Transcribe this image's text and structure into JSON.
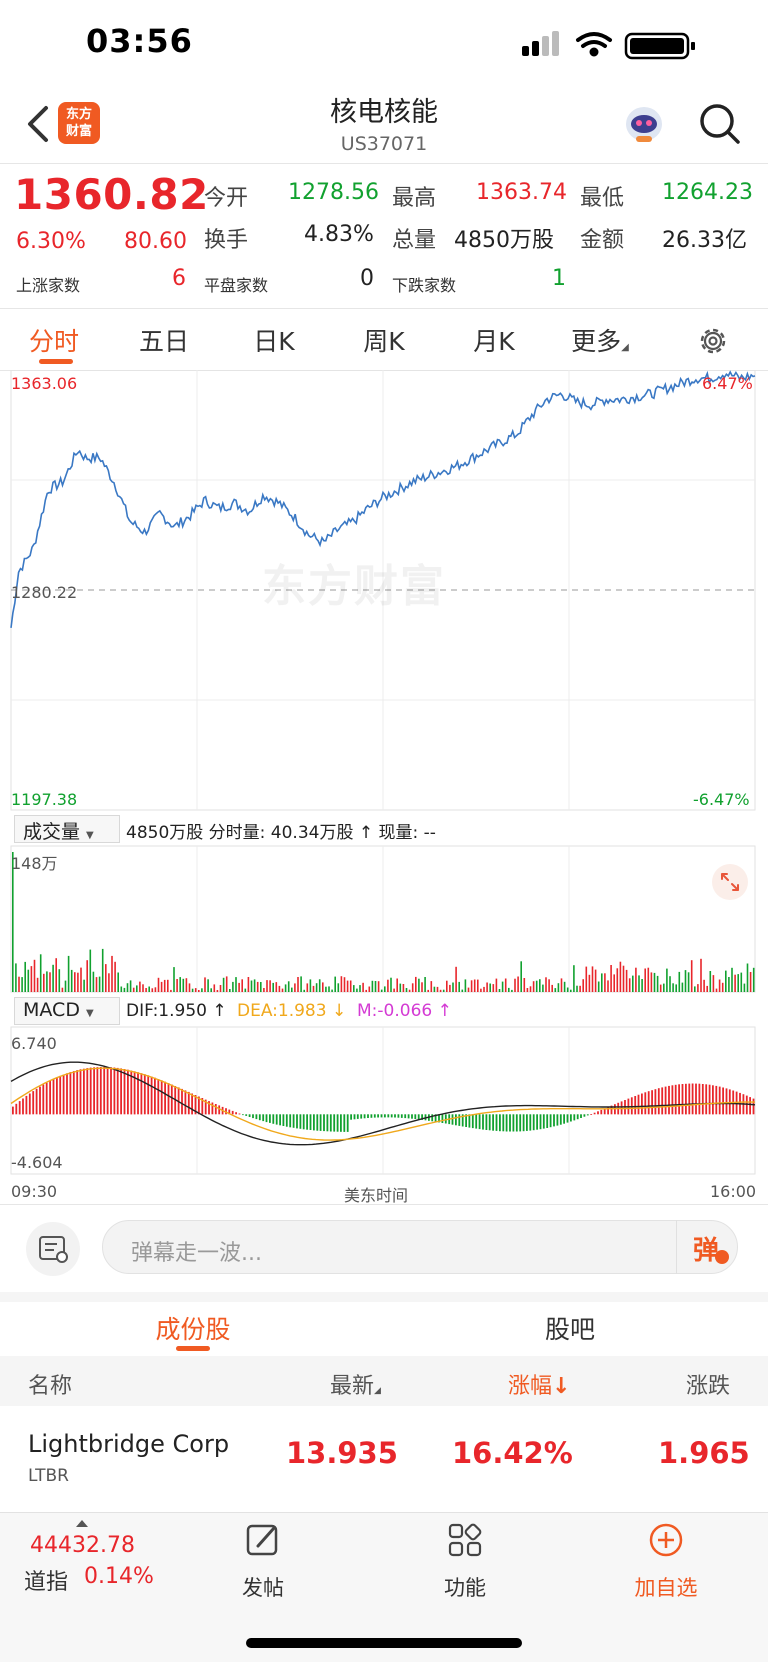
{
  "status_bar": {
    "time": "03:56"
  },
  "nav": {
    "logo_line1": "东方",
    "logo_line2": "财富",
    "title": "核电核能",
    "code": "US37071"
  },
  "quote": {
    "price": "1360.82",
    "change_pct": "6.30%",
    "change_amt": "80.60",
    "open_label": "今开",
    "open": "1278.56",
    "high_label": "最高",
    "high": "1363.74",
    "low_label": "最低",
    "low": "1264.23",
    "turnover_label": "换手",
    "turnover": "4.83%",
    "volume_label": "总量",
    "volume": "4850万股",
    "amount_label": "金额",
    "amount": "26.33亿",
    "up_label": "上涨家数",
    "up": "6",
    "flat_label": "平盘家数",
    "flat": "0",
    "down_label": "下跌家数",
    "down": "1"
  },
  "chart_tabs": [
    "分时",
    "五日",
    "日K",
    "周K",
    "月K",
    "更多"
  ],
  "intraday": {
    "top_price": "1363.06",
    "top_pct": "6.47%",
    "mid_price": "1280.22",
    "bottom_price": "1197.38",
    "bottom_pct": "-6.47%",
    "watermark": "东方财富",
    "volume_selector": "成交量",
    "volume_info": "4850万股 分时量: 40.34万股 ↑ 现量: --",
    "volume_max": "148万",
    "macd_selector": "MACD",
    "dif": "DIF:1.950 ↑",
    "dea": "DEA:1.983 ↓",
    "m": "M:-0.066 ↑",
    "macd_top": "6.740",
    "macd_bottom": "-4.604",
    "time_start": "09:30",
    "time_mid": "美东时间",
    "time_end": "16:00",
    "colors": {
      "line": "#3a78c4",
      "up": "#e8262b",
      "down": "#11a12f",
      "dea": "#f0a81c",
      "m": "#d43bd4"
    }
  },
  "danmaku": {
    "placeholder": "弹幕走一波...",
    "send": "弹"
  },
  "section_tabs": [
    "成份股",
    "股吧"
  ],
  "list": {
    "headers": {
      "name": "名称",
      "latest": "最新",
      "change_pct": "涨幅",
      "change": "涨跌"
    },
    "rows": [
      {
        "name": "Lightbridge Corp",
        "code": "LTBR",
        "latest": "13.935",
        "change_pct": "16.42%",
        "change": "1.965"
      }
    ]
  },
  "toolbar": {
    "index_value": "44432.78",
    "index_name": "道指",
    "index_pct": "0.14%",
    "post": "发帖",
    "func": "功能",
    "add": "加自选"
  }
}
